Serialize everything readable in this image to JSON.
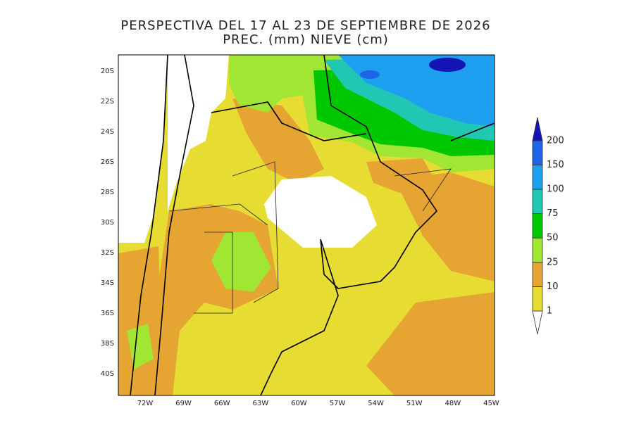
{
  "title": "PERSPECTIVA DEL 17 AL 23 DE SEPTIEMBRE DE 2026",
  "subtitle": "PREC. (mm) NIEVE (cm)",
  "lat_labels": [
    "20S",
    "22S",
    "24S",
    "26S",
    "28S",
    "30S",
    "32S",
    "34S",
    "36S",
    "38S",
    "40S"
  ],
  "lon_labels": [
    "72W",
    "69W",
    "66W",
    "63W",
    "60W",
    "57W",
    "54W",
    "51W",
    "48W",
    "45W"
  ],
  "colorbar": {
    "levels": [
      1,
      10,
      25,
      50,
      75,
      100,
      150,
      200
    ],
    "colors": [
      "#ffffff",
      "#e6dc32",
      "#e6a532",
      "#a0e632",
      "#00c800",
      "#20c8b4",
      "#1ea0f0",
      "#1e64e6",
      "#1414b4"
    ]
  }
}
